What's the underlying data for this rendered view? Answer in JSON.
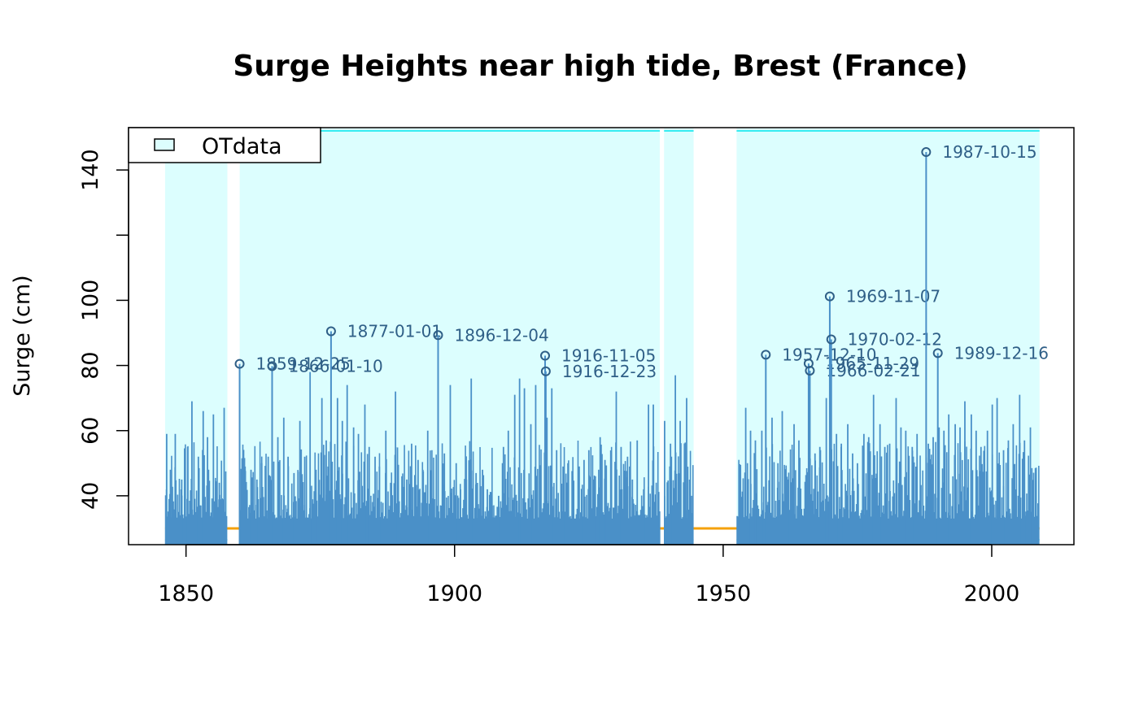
{
  "chart_data": {
    "type": "line",
    "title": "Surge Heights near high tide,  Brest (France)",
    "xlabel": "",
    "ylabel": "Surge (cm)",
    "xlim": [
      1839.3,
      2015.3
    ],
    "ylim": [
      25,
      153
    ],
    "x_ticks": [
      1850,
      1900,
      1950,
      2000
    ],
    "y_ticks": [
      40,
      60,
      80,
      100,
      120,
      140
    ],
    "y_tick_labels": [
      "40",
      "60",
      "80",
      "100",
      "",
      "140"
    ],
    "threshold": 30,
    "colors": {
      "spikes": "#4a90c8",
      "period_fill": "#dcfefe",
      "period_edge": "#00e5ee",
      "threshold": "#f5a10a",
      "annotation": "#2f5f87"
    },
    "legend": {
      "position": "top-left",
      "entries": [
        "OTdata"
      ]
    },
    "observation_periods": [
      [
        1846.1,
        1857.7
      ],
      [
        1860.0,
        1938.2
      ],
      [
        1939.0,
        1944.5
      ],
      [
        1952.5,
        2008.9
      ]
    ],
    "annotated_events": [
      {
        "label": "1859-12-25",
        "x": 1859.98,
        "y": 80.5
      },
      {
        "label": "1866-01-10",
        "x": 1866.03,
        "y": 79.8
      },
      {
        "label": "1877-01-01",
        "x": 1877.0,
        "y": 90.5
      },
      {
        "label": "1896-12-04",
        "x": 1896.93,
        "y": 89.3
      },
      {
        "label": "1916-11-05",
        "x": 1916.85,
        "y": 83.0
      },
      {
        "label": "1916-12-23",
        "x": 1916.98,
        "y": 78.2
      },
      {
        "label": "1957-12-10",
        "x": 1957.94,
        "y": 83.3
      },
      {
        "label": "1965-11-29",
        "x": 1965.91,
        "y": 80.6
      },
      {
        "label": "1966-02-21",
        "x": 1966.14,
        "y": 78.4
      },
      {
        "label": "1969-11-07",
        "x": 1969.85,
        "y": 101.2
      },
      {
        "label": "1970-02-12",
        "x": 1970.12,
        "y": 88.0
      },
      {
        "label": "1987-10-15",
        "x": 1987.79,
        "y": 145.5
      },
      {
        "label": "1989-12-16",
        "x": 1989.96,
        "y": 83.8
      }
    ],
    "other_surges": [
      [
        1846.4,
        59
      ],
      [
        1847.1,
        48
      ],
      [
        1848.0,
        59
      ],
      [
        1849.2,
        45
      ],
      [
        1850.3,
        55
      ],
      [
        1851.1,
        69
      ],
      [
        1852.3,
        52
      ],
      [
        1853.2,
        66
      ],
      [
        1854.0,
        58
      ],
      [
        1855.1,
        65
      ],
      [
        1856.2,
        44
      ],
      [
        1857.1,
        67
      ],
      [
        1861.0,
        49
      ],
      [
        1862.1,
        48
      ],
      [
        1863.2,
        45
      ],
      [
        1864.1,
        50
      ],
      [
        1865.3,
        52
      ],
      [
        1867.1,
        58
      ],
      [
        1868.2,
        64
      ],
      [
        1869.0,
        52
      ],
      [
        1870.1,
        47
      ],
      [
        1871.2,
        63
      ],
      [
        1872.1,
        52
      ],
      [
        1873.1,
        78
      ],
      [
        1874.2,
        48
      ],
      [
        1875.3,
        70
      ],
      [
        1876.1,
        57
      ],
      [
        1878.2,
        70
      ],
      [
        1879.1,
        63
      ],
      [
        1880.0,
        74
      ],
      [
        1881.2,
        61
      ],
      [
        1882.1,
        59
      ],
      [
        1883.3,
        68
      ],
      [
        1884.1,
        55
      ],
      [
        1885.2,
        52
      ],
      [
        1886.0,
        49
      ],
      [
        1887.2,
        60
      ],
      [
        1888.1,
        44
      ],
      [
        1889.0,
        72
      ],
      [
        1890.2,
        46
      ],
      [
        1891.1,
        45
      ],
      [
        1892.0,
        56
      ],
      [
        1893.2,
        51
      ],
      [
        1894.1,
        48
      ],
      [
        1895.0,
        60
      ],
      [
        1898.1,
        53
      ],
      [
        1899.2,
        74
      ],
      [
        1900.3,
        50
      ],
      [
        1901.1,
        42
      ],
      [
        1902.2,
        45
      ],
      [
        1903.1,
        76
      ],
      [
        1904.0,
        47
      ],
      [
        1905.2,
        48
      ],
      [
        1906.1,
        42
      ],
      [
        1907.0,
        37
      ],
      [
        1908.2,
        40
      ],
      [
        1909.1,
        55
      ],
      [
        1910.0,
        60
      ],
      [
        1911.2,
        71
      ],
      [
        1912.1,
        76
      ],
      [
        1913.0,
        73
      ],
      [
        1914.2,
        62
      ],
      [
        1915.1,
        74
      ],
      [
        1917.2,
        64
      ],
      [
        1918.1,
        73
      ],
      [
        1919.0,
        54
      ],
      [
        1920.2,
        49
      ],
      [
        1921.1,
        50
      ],
      [
        1922.0,
        46
      ],
      [
        1923.2,
        49
      ],
      [
        1924.1,
        51
      ],
      [
        1925.0,
        54
      ],
      [
        1926.2,
        46
      ],
      [
        1927.1,
        58
      ],
      [
        1928.0,
        51
      ],
      [
        1929.2,
        45
      ],
      [
        1930.1,
        72
      ],
      [
        1931.0,
        55
      ],
      [
        1932.2,
        52
      ],
      [
        1933.1,
        45
      ],
      [
        1934.0,
        57
      ],
      [
        1935.2,
        42
      ],
      [
        1936.1,
        68
      ],
      [
        1937.0,
        68
      ],
      [
        1939.1,
        63
      ],
      [
        1940.2,
        56
      ],
      [
        1941.1,
        77
      ],
      [
        1942.0,
        63
      ],
      [
        1943.2,
        70
      ],
      [
        1944.1,
        40
      ],
      [
        1953.1,
        43
      ],
      [
        1954.2,
        67
      ],
      [
        1955.1,
        60
      ],
      [
        1956.0,
        57
      ],
      [
        1957.2,
        60
      ],
      [
        1959.1,
        64
      ],
      [
        1960.2,
        50
      ],
      [
        1961.0,
        66
      ],
      [
        1962.1,
        45
      ],
      [
        1963.2,
        62
      ],
      [
        1964.1,
        57
      ],
      [
        1967.1,
        53
      ],
      [
        1968.0,
        55
      ],
      [
        1969.2,
        70
      ],
      [
        1971.1,
        59
      ],
      [
        1972.0,
        56
      ],
      [
        1973.2,
        62
      ],
      [
        1974.1,
        53
      ],
      [
        1975.0,
        50
      ],
      [
        1976.2,
        59
      ],
      [
        1977.1,
        58
      ],
      [
        1978.0,
        71
      ],
      [
        1979.2,
        62
      ],
      [
        1980.1,
        55
      ],
      [
        1981.0,
        56
      ],
      [
        1982.2,
        70
      ],
      [
        1983.1,
        61
      ],
      [
        1984.0,
        60
      ],
      [
        1985.2,
        55
      ],
      [
        1986.1,
        59
      ],
      [
        1988.2,
        56
      ],
      [
        1989.1,
        58
      ],
      [
        1990.2,
        61
      ],
      [
        1991.1,
        60
      ],
      [
        1992.0,
        65
      ],
      [
        1993.2,
        62
      ],
      [
        1994.1,
        61
      ],
      [
        1995.0,
        69
      ],
      [
        1996.2,
        65
      ],
      [
        1997.1,
        60
      ],
      [
        1998.0,
        55
      ],
      [
        1999.2,
        60
      ],
      [
        2000.1,
        68
      ],
      [
        2001.0,
        70
      ],
      [
        2002.2,
        54
      ],
      [
        2003.1,
        57
      ],
      [
        2004.0,
        62
      ],
      [
        2005.2,
        71
      ],
      [
        2006.1,
        57
      ],
      [
        2007.2,
        61
      ]
    ]
  }
}
